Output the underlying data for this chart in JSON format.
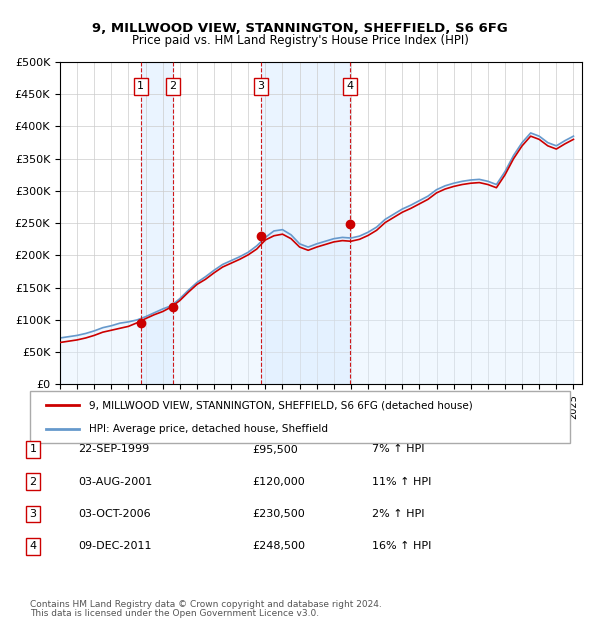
{
  "title1": "9, MILLWOOD VIEW, STANNINGTON, SHEFFIELD, S6 6FG",
  "title2": "Price paid vs. HM Land Registry's House Price Index (HPI)",
  "ylabel": "",
  "ylim": [
    0,
    500000
  ],
  "yticks": [
    0,
    50000,
    100000,
    150000,
    200000,
    250000,
    300000,
    350000,
    400000,
    450000,
    500000
  ],
  "ytick_labels": [
    "£0",
    "£50K",
    "£100K",
    "£150K",
    "£200K",
    "£250K",
    "£300K",
    "£350K",
    "£400K",
    "£450K",
    "£500K"
  ],
  "xlim_start": 1995.0,
  "xlim_end": 2025.5,
  "sale_color": "#cc0000",
  "hpi_color": "#6699cc",
  "hpi_fill_color": "#ddeeff",
  "sale_dot_color": "#cc0000",
  "transactions": [
    {
      "num": 1,
      "date_str": "22-SEP-1999",
      "price": 95500,
      "pct": "7%",
      "x": 1999.72
    },
    {
      "num": 2,
      "date_str": "03-AUG-2001",
      "price": 120000,
      "pct": "11%",
      "x": 2001.58
    },
    {
      "num": 3,
      "date_str": "03-OCT-2006",
      "price": 230500,
      "pct": "2%",
      "x": 2006.75
    },
    {
      "num": 4,
      "date_str": "09-DEC-2011",
      "price": 248500,
      "pct": "16%",
      "x": 2011.93
    }
  ],
  "vline_color": "#cc0000",
  "vline_style": "--",
  "highlight_color": "#ddeeff",
  "legend_label1": "9, MILLWOOD VIEW, STANNINGTON, SHEFFIELD, S6 6FG (detached house)",
  "legend_label2": "HPI: Average price, detached house, Sheffield",
  "footer1": "Contains HM Land Registry data © Crown copyright and database right 2024.",
  "footer2": "This data is licensed under the Open Government Licence v3.0.",
  "table_rows": [
    [
      "1",
      "22-SEP-1999",
      "£95,500",
      "7% ↑ HPI"
    ],
    [
      "2",
      "03-AUG-2001",
      "£120,000",
      "11% ↑ HPI"
    ],
    [
      "3",
      "03-OCT-2006",
      "£230,500",
      "2% ↑ HPI"
    ],
    [
      "4",
      "09-DEC-2011",
      "£248,500",
      "16% ↑ HPI"
    ]
  ],
  "hpi_x": [
    1995.0,
    1995.5,
    1996.0,
    1996.5,
    1997.0,
    1997.5,
    1998.0,
    1998.5,
    1999.0,
    1999.5,
    2000.0,
    2000.5,
    2001.0,
    2001.5,
    2002.0,
    2002.5,
    2003.0,
    2003.5,
    2004.0,
    2004.5,
    2005.0,
    2005.5,
    2006.0,
    2006.5,
    2007.0,
    2007.5,
    2008.0,
    2008.5,
    2009.0,
    2009.5,
    2010.0,
    2010.5,
    2011.0,
    2011.5,
    2012.0,
    2012.5,
    2013.0,
    2013.5,
    2014.0,
    2014.5,
    2015.0,
    2015.5,
    2016.0,
    2016.5,
    2017.0,
    2017.5,
    2018.0,
    2018.5,
    2019.0,
    2019.5,
    2020.0,
    2020.5,
    2021.0,
    2021.5,
    2022.0,
    2022.5,
    2023.0,
    2023.5,
    2024.0,
    2024.5,
    2025.0
  ],
  "hpi_y": [
    72000,
    74000,
    76000,
    79000,
    83000,
    88000,
    91000,
    95000,
    97000,
    100000,
    105000,
    111000,
    117000,
    122000,
    133000,
    146000,
    158000,
    167000,
    177000,
    186000,
    192000,
    198000,
    205000,
    215000,
    228000,
    238000,
    240000,
    232000,
    218000,
    213000,
    218000,
    222000,
    226000,
    228000,
    227000,
    230000,
    236000,
    244000,
    256000,
    264000,
    272000,
    278000,
    285000,
    292000,
    302000,
    308000,
    312000,
    315000,
    317000,
    318000,
    315000,
    310000,
    330000,
    355000,
    375000,
    390000,
    385000,
    375000,
    370000,
    378000,
    385000
  ],
  "sale_x": [
    1995.0,
    1995.5,
    1996.0,
    1996.5,
    1997.0,
    1997.5,
    1998.0,
    1998.5,
    1999.0,
    1999.5,
    2000.0,
    2000.5,
    2001.0,
    2001.5,
    2002.0,
    2002.5,
    2003.0,
    2003.5,
    2004.0,
    2004.5,
    2005.0,
    2005.5,
    2006.0,
    2006.5,
    2007.0,
    2007.5,
    2008.0,
    2008.5,
    2009.0,
    2009.5,
    2010.0,
    2010.5,
    2011.0,
    2011.5,
    2012.0,
    2012.5,
    2013.0,
    2013.5,
    2014.0,
    2014.5,
    2015.0,
    2015.5,
    2016.0,
    2016.5,
    2017.0,
    2017.5,
    2018.0,
    2018.5,
    2019.0,
    2019.5,
    2020.0,
    2020.5,
    2021.0,
    2021.5,
    2022.0,
    2022.5,
    2023.0,
    2023.5,
    2024.0,
    2024.5,
    2025.0
  ],
  "sale_y": [
    65000,
    67000,
    69000,
    72000,
    76000,
    81000,
    84000,
    87000,
    90000,
    95500,
    102000,
    108000,
    113000,
    120000,
    130000,
    143000,
    155000,
    163000,
    173000,
    182000,
    188000,
    194000,
    201000,
    210000,
    224000,
    230500,
    233000,
    226000,
    213000,
    208000,
    213000,
    217000,
    221000,
    223000,
    222000,
    225000,
    231000,
    239000,
    251000,
    259000,
    267000,
    273000,
    280000,
    287000,
    297000,
    303000,
    307000,
    310000,
    312000,
    313000,
    310000,
    305000,
    325000,
    350000,
    370000,
    385000,
    380000,
    370000,
    365000,
    373000,
    380000
  ]
}
